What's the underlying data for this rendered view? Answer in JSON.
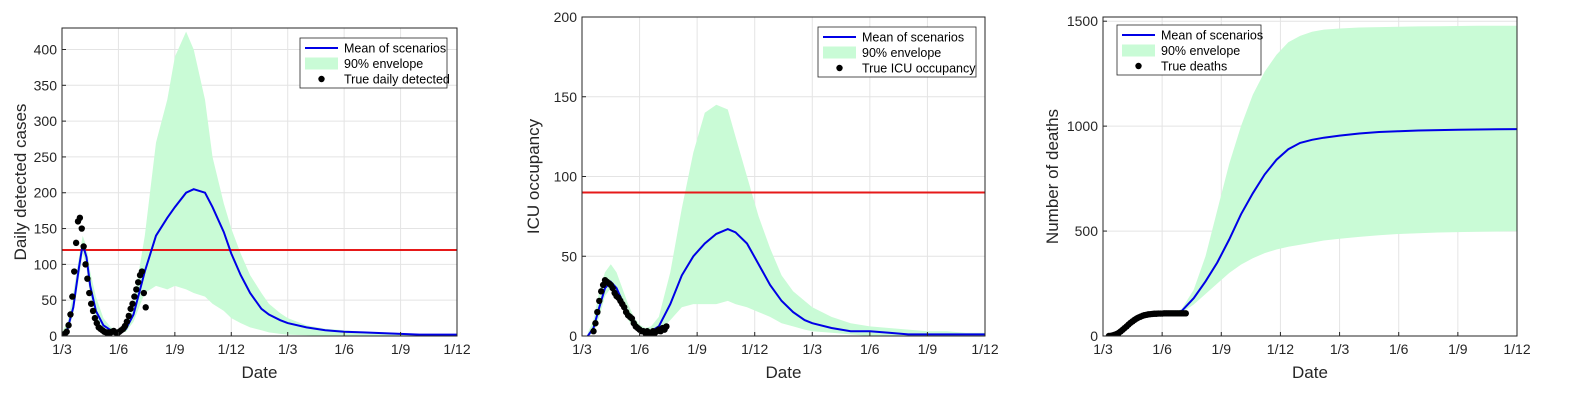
{
  "colors": {
    "mean": "#0000e6",
    "envelope": "#c9fbd6",
    "truth": "#000000",
    "threshold": "#e61919",
    "grid": "#e4e4e4",
    "axis": "#262626"
  },
  "chart_data": [
    {
      "type": "line",
      "xlabel": "Date",
      "ylabel": "Daily detected cases",
      "x_ticks": [
        "1/3",
        "1/6",
        "1/9",
        "1/12",
        "1/3",
        "1/6",
        "1/9",
        "1/12"
      ],
      "xlim": [
        0,
        21
      ],
      "ylim": [
        0,
        430
      ],
      "y_ticks": [
        0,
        50,
        100,
        150,
        200,
        250,
        300,
        350,
        400
      ],
      "grid": true,
      "legend_position": "top-right",
      "legend": [
        "Mean of scenarios",
        "90% envelope",
        "True daily detected"
      ],
      "threshold": 120,
      "series": [
        {
          "name": "Mean of scenarios",
          "x": [
            0,
            0.3,
            0.6,
            0.9,
            1.1,
            1.3,
            1.5,
            1.8,
            2.2,
            2.6,
            3.0,
            3.4,
            3.8,
            4.4,
            5.0,
            5.6,
            6.0,
            6.6,
            7.0,
            7.6,
            8.0,
            8.6,
            9.0,
            9.5,
            10.0,
            10.6,
            11.0,
            11.6,
            12.0,
            13.0,
            14.0,
            15.0,
            16.0,
            17.0,
            18.0,
            19.0,
            20.0,
            21.0
          ],
          "y": [
            2,
            10,
            40,
            95,
            128,
            110,
            70,
            35,
            15,
            8,
            6,
            10,
            30,
            90,
            140,
            165,
            180,
            200,
            205,
            200,
            180,
            145,
            115,
            85,
            60,
            38,
            30,
            22,
            18,
            12,
            8,
            6,
            5,
            4,
            3,
            2,
            2,
            2
          ]
        },
        {
          "name": "90% envelope",
          "x": [
            0,
            0.3,
            0.6,
            0.9,
            1.1,
            1.3,
            1.5,
            1.8,
            2.2,
            2.6,
            3.0,
            3.4,
            3.8,
            4.4,
            5.0,
            5.6,
            6.0,
            6.6,
            7.0,
            7.6,
            8.0,
            8.6,
            9.0,
            9.5,
            10.0,
            10.6,
            11.0,
            11.6,
            12.0,
            13.0,
            14.0,
            15.0,
            16.0,
            17.0,
            18.0,
            19.0,
            20.0,
            21.0
          ],
          "lower": [
            0,
            5,
            30,
            80,
            115,
            95,
            55,
            25,
            8,
            4,
            4,
            6,
            20,
            60,
            70,
            65,
            70,
            65,
            60,
            55,
            45,
            35,
            25,
            18,
            12,
            8,
            5,
            3,
            2,
            1,
            0,
            0,
            0,
            0,
            0,
            0,
            0,
            0
          ],
          "upper": [
            5,
            20,
            60,
            110,
            140,
            125,
            90,
            55,
            25,
            12,
            8,
            15,
            45,
            140,
            270,
            330,
            390,
            425,
            400,
            330,
            250,
            185,
            150,
            115,
            85,
            60,
            45,
            32,
            25,
            15,
            10,
            8,
            6,
            5,
            4,
            3,
            3,
            3
          ]
        },
        {
          "name": "True daily detected",
          "x": [
            0.05,
            0.15,
            0.25,
            0.35,
            0.45,
            0.55,
            0.65,
            0.75,
            0.85,
            0.95,
            1.05,
            1.15,
            1.25,
            1.35,
            1.45,
            1.55,
            1.65,
            1.75,
            1.85,
            1.95,
            2.05,
            2.15,
            2.25,
            2.35,
            2.45,
            2.55,
            2.65,
            2.75,
            2.85,
            2.95,
            3.05,
            3.15,
            3.25,
            3.35,
            3.45,
            3.55,
            3.65,
            3.75,
            3.85,
            3.95,
            4.05,
            4.15,
            4.25,
            4.35,
            4.45
          ],
          "y": [
            1,
            3,
            6,
            15,
            30,
            55,
            90,
            130,
            160,
            165,
            150,
            125,
            100,
            80,
            60,
            45,
            35,
            25,
            18,
            12,
            10,
            8,
            6,
            5,
            5,
            4,
            6,
            7,
            5,
            4,
            6,
            8,
            10,
            14,
            20,
            28,
            38,
            45,
            55,
            65,
            75,
            85,
            90,
            60,
            40
          ]
        }
      ]
    },
    {
      "type": "line",
      "xlabel": "Date",
      "ylabel": "ICU occupancy",
      "x_ticks": [
        "1/3",
        "1/6",
        "1/9",
        "1/12",
        "1/3",
        "1/6",
        "1/9",
        "1/12"
      ],
      "xlim": [
        0,
        21
      ],
      "ylim": [
        0,
        200
      ],
      "y_ticks": [
        0,
        50,
        100,
        150,
        200
      ],
      "grid": true,
      "legend_position": "top-right",
      "legend": [
        "Mean of scenarios",
        "90% envelope",
        "True ICU occupancy"
      ],
      "threshold": 90,
      "series": [
        {
          "name": "Mean of scenarios",
          "x": [
            0.3,
            0.6,
            0.9,
            1.2,
            1.5,
            1.8,
            2.1,
            2.4,
            2.7,
            3.0,
            3.3,
            3.6,
            4.0,
            4.6,
            5.2,
            5.8,
            6.4,
            7.0,
            7.6,
            8.0,
            8.6,
            9.2,
            9.8,
            10.4,
            11.0,
            11.6,
            12.0,
            13.0,
            14.0,
            15.0,
            16.0,
            17.0,
            18.0,
            19.0,
            20.0,
            21.0
          ],
          "y": [
            0,
            5,
            18,
            30,
            34,
            30,
            22,
            14,
            8,
            4,
            3,
            3,
            6,
            20,
            38,
            50,
            58,
            64,
            67,
            65,
            58,
            45,
            32,
            22,
            15,
            10,
            8,
            5,
            3,
            3,
            2,
            1,
            1,
            1,
            1,
            1
          ]
        },
        {
          "name": "90% envelope",
          "x": [
            0.3,
            0.6,
            0.9,
            1.2,
            1.5,
            1.8,
            2.1,
            2.4,
            2.7,
            3.0,
            3.3,
            3.6,
            4.0,
            4.6,
            5.2,
            5.8,
            6.4,
            7.0,
            7.6,
            8.0,
            8.6,
            9.2,
            9.8,
            10.4,
            11.0,
            11.6,
            12.0,
            13.0,
            14.0,
            15.0,
            16.0,
            17.0,
            18.0,
            19.0,
            20.0,
            21.0
          ],
          "lower": [
            0,
            2,
            12,
            25,
            30,
            26,
            18,
            10,
            5,
            2,
            1,
            1,
            3,
            10,
            18,
            20,
            20,
            20,
            22,
            20,
            18,
            15,
            12,
            8,
            6,
            4,
            3,
            2,
            1,
            0,
            0,
            0,
            0,
            0,
            0,
            0
          ],
          "upper": [
            2,
            10,
            28,
            40,
            45,
            40,
            30,
            20,
            12,
            7,
            5,
            6,
            12,
            40,
            80,
            115,
            140,
            145,
            142,
            125,
            100,
            75,
            55,
            38,
            28,
            22,
            18,
            12,
            8,
            6,
            5,
            4,
            3,
            3,
            2,
            2
          ]
        },
        {
          "name": "True ICU occupancy",
          "x": [
            0.6,
            0.7,
            0.8,
            0.9,
            1.0,
            1.1,
            1.2,
            1.3,
            1.4,
            1.5,
            1.6,
            1.7,
            1.8,
            1.9,
            2.0,
            2.1,
            2.2,
            2.3,
            2.4,
            2.5,
            2.6,
            2.7,
            2.8,
            2.9,
            3.0,
            3.1,
            3.2,
            3.3,
            3.4,
            3.5,
            3.6,
            3.7,
            3.8,
            3.9,
            4.0,
            4.1,
            4.2,
            4.3,
            4.4
          ],
          "y": [
            3,
            8,
            15,
            22,
            28,
            32,
            35,
            34,
            33,
            32,
            30,
            27,
            25,
            24,
            22,
            20,
            18,
            15,
            13,
            12,
            11,
            8,
            6,
            5,
            4,
            3,
            3,
            2,
            3,
            2,
            2,
            3,
            2,
            3,
            4,
            3,
            5,
            4,
            6
          ]
        }
      ]
    },
    {
      "type": "line",
      "xlabel": "Date",
      "ylabel": "Number of deaths",
      "x_ticks": [
        "1/3",
        "1/6",
        "1/9",
        "1/12",
        "1/3",
        "1/6",
        "1/9",
        "1/12"
      ],
      "xlim": [
        0,
        21
      ],
      "ylim": [
        0,
        1520
      ],
      "y_ticks": [
        0,
        500,
        1000,
        1500
      ],
      "grid": true,
      "legend_position": "top-left",
      "legend": [
        "Mean of scenarios",
        "90% envelope",
        "True deaths"
      ],
      "series": [
        {
          "name": "Mean of scenarios",
          "x": [
            0.3,
            0.6,
            0.9,
            1.2,
            1.5,
            1.8,
            2.1,
            2.4,
            2.7,
            3.0,
            3.3,
            3.6,
            4.0,
            4.6,
            5.2,
            5.8,
            6.4,
            7.0,
            7.6,
            8.2,
            8.8,
            9.4,
            10.0,
            10.6,
            11.2,
            12.0,
            13.0,
            14.0,
            15.0,
            16.0,
            17.0,
            18.0,
            19.0,
            20.0,
            21.0
          ],
          "y": [
            0,
            5,
            15,
            35,
            60,
            80,
            95,
            102,
            105,
            106,
            107,
            108,
            120,
            180,
            260,
            350,
            460,
            580,
            680,
            770,
            840,
            890,
            920,
            935,
            945,
            955,
            965,
            972,
            976,
            979,
            981,
            983,
            984,
            985,
            986
          ]
        },
        {
          "name": "90% envelope",
          "x": [
            0.3,
            0.6,
            0.9,
            1.2,
            1.5,
            1.8,
            2.1,
            2.4,
            2.7,
            3.0,
            3.3,
            3.6,
            4.0,
            4.6,
            5.2,
            5.8,
            6.4,
            7.0,
            7.6,
            8.2,
            8.8,
            9.4,
            10.0,
            10.6,
            11.2,
            12.0,
            13.0,
            14.0,
            15.0,
            16.0,
            17.0,
            18.0,
            19.0,
            20.0,
            21.0
          ],
          "lower": [
            0,
            4,
            13,
            32,
            57,
            77,
            92,
            100,
            103,
            104,
            105,
            106,
            112,
            150,
            200,
            250,
            300,
            340,
            370,
            395,
            412,
            425,
            435,
            445,
            455,
            463,
            472,
            480,
            486,
            490,
            493,
            495,
            497,
            498,
            500
          ],
          "upper": [
            0,
            6,
            17,
            38,
            63,
            83,
            98,
            104,
            107,
            108,
            109,
            110,
            130,
            220,
            380,
            600,
            820,
            1000,
            1150,
            1260,
            1340,
            1400,
            1430,
            1450,
            1460,
            1465,
            1470,
            1472,
            1474,
            1475,
            1476,
            1477,
            1478,
            1478,
            1478
          ]
        },
        {
          "name": "True deaths",
          "x": [
            0.3,
            0.4,
            0.5,
            0.6,
            0.7,
            0.8,
            0.9,
            1.0,
            1.1,
            1.2,
            1.3,
            1.4,
            1.5,
            1.6,
            1.7,
            1.8,
            1.9,
            2.0,
            2.1,
            2.2,
            2.3,
            2.4,
            2.5,
            2.6,
            2.7,
            2.8,
            2.9,
            3.0,
            3.1,
            3.2,
            3.3,
            3.4,
            3.5,
            3.6,
            3.7,
            3.8,
            3.9,
            4.0,
            4.1,
            4.2
          ],
          "y": [
            0,
            1,
            3,
            6,
            10,
            15,
            22,
            30,
            38,
            46,
            55,
            63,
            70,
            77,
            83,
            88,
            92,
            96,
            99,
            101,
            103,
            104,
            105,
            106,
            106,
            107,
            107,
            107,
            108,
            108,
            108,
            108,
            108,
            108,
            108,
            108,
            108,
            108,
            108,
            108
          ]
        }
      ]
    }
  ]
}
